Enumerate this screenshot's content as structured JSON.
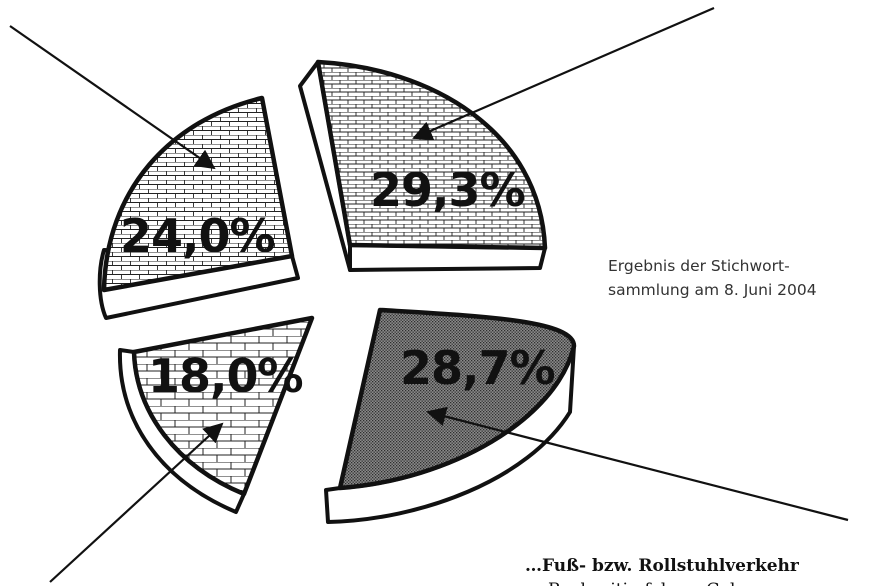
{
  "chart_data": {
    "type": "pie",
    "slices": [
      {
        "label": "29,3%",
        "value": 29.3,
        "pattern": "brick-small"
      },
      {
        "label": "28,7%",
        "value": 28.7,
        "pattern": "dots-dense"
      },
      {
        "label": "18,0%",
        "value": 18.0,
        "pattern": "brick-large"
      },
      {
        "label": "24,0%",
        "value": 24.0,
        "pattern": "brick-medium"
      }
    ],
    "style": "exploded-3d",
    "legend": "none"
  },
  "caption": {
    "line1": "Ergebnis der Stichwort-",
    "line2": "sammlung am 8. Juni 2004"
  },
  "section": {
    "heading": "…Fuß- bzw. Rollstuhlverkehr",
    "bullet_dot": "•",
    "bullet_text": "Rechzeitig fahren Geh..."
  },
  "colors": {
    "stroke": "#111111",
    "fill_light": "#ffffff",
    "fill_dark": "#555555"
  }
}
